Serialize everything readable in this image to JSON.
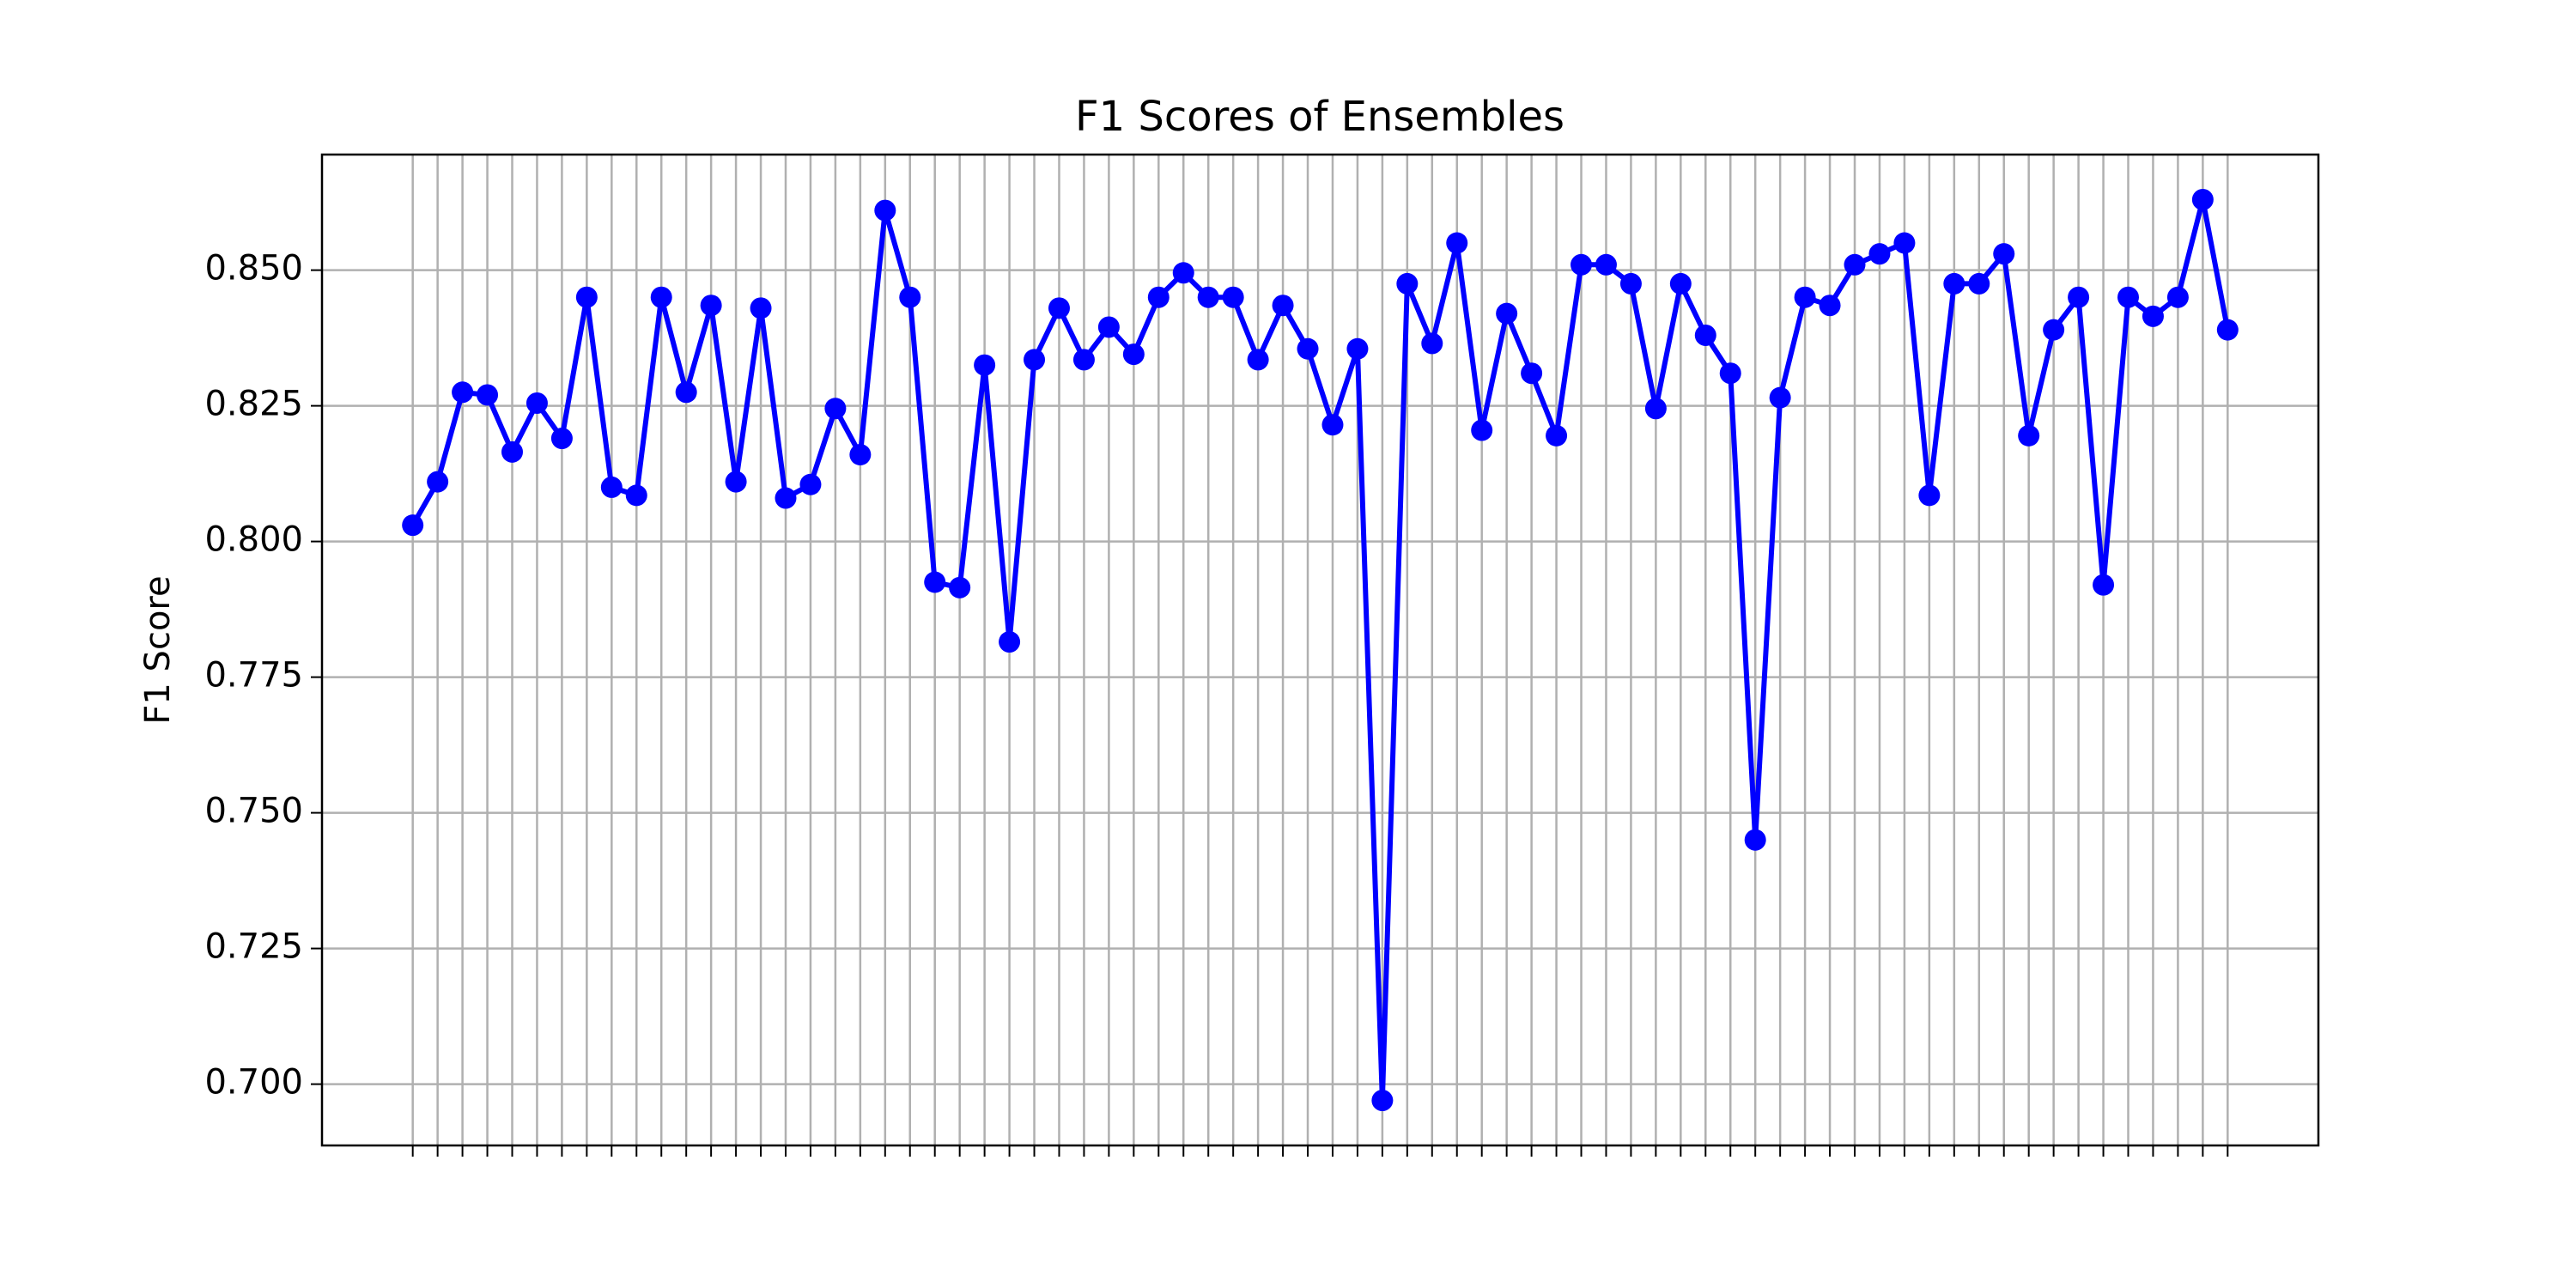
{
  "chart_data": {
    "type": "line",
    "title": "F1 Scores of Ensembles",
    "y_label": "F1 Score",
    "categories": [
      null,
      null,
      null,
      null,
      null,
      null,
      null,
      null,
      null,
      null,
      null,
      null,
      null,
      null,
      null,
      null,
      null,
      null,
      null,
      null,
      null,
      null,
      null,
      null,
      null,
      null,
      null,
      null,
      null,
      null,
      null,
      null,
      null,
      null,
      null,
      null,
      null,
      null,
      null,
      null,
      null,
      null,
      null,
      null,
      null,
      null,
      null,
      null,
      null,
      null,
      null,
      null,
      null,
      null,
      null,
      null,
      null,
      null,
      null,
      null,
      null,
      null,
      null,
      null,
      null,
      null,
      null,
      null,
      null,
      null,
      null,
      null,
      null,
      null
    ],
    "series": [
      {
        "name": "F1 Score",
        "color": "#0000ff",
        "values": [
          0.803,
          0.811,
          0.8275,
          0.827,
          0.8165,
          0.8255,
          0.819,
          0.845,
          0.81,
          0.8085,
          0.845,
          0.8275,
          0.8435,
          0.811,
          0.843,
          0.808,
          0.8105,
          0.8245,
          0.816,
          0.861,
          0.845,
          0.7925,
          0.7915,
          0.8325,
          0.7815,
          0.8335,
          0.843,
          0.8335,
          0.8395,
          0.8345,
          0.845,
          0.8495,
          0.845,
          0.845,
          0.8335,
          0.8435,
          0.8355,
          0.8215,
          0.8355,
          0.697,
          0.8475,
          0.8365,
          0.855,
          0.8205,
          0.842,
          0.831,
          0.8195,
          0.851,
          0.851,
          0.8475,
          0.8245,
          0.8475,
          0.838,
          0.831,
          0.745,
          0.8265,
          0.845,
          0.8435,
          0.851,
          0.853,
          0.855,
          0.8085,
          0.8475,
          0.8475,
          0.853,
          0.8195,
          0.839,
          0.845,
          0.792,
          0.845,
          0.8415,
          0.845,
          0.863,
          0.839
        ]
      }
    ],
    "ylim": [
      0.6887,
      0.8713
    ],
    "yticks": [
      {
        "value": 0.7,
        "label": "0.700"
      },
      {
        "value": 0.725,
        "label": "0.725"
      },
      {
        "value": 0.75,
        "label": "0.750"
      },
      {
        "value": 0.775,
        "label": "0.775"
      },
      {
        "value": 0.8,
        "label": "0.800"
      },
      {
        "value": 0.825,
        "label": "0.825"
      },
      {
        "value": 0.85,
        "label": "0.850"
      }
    ],
    "grid": true
  }
}
